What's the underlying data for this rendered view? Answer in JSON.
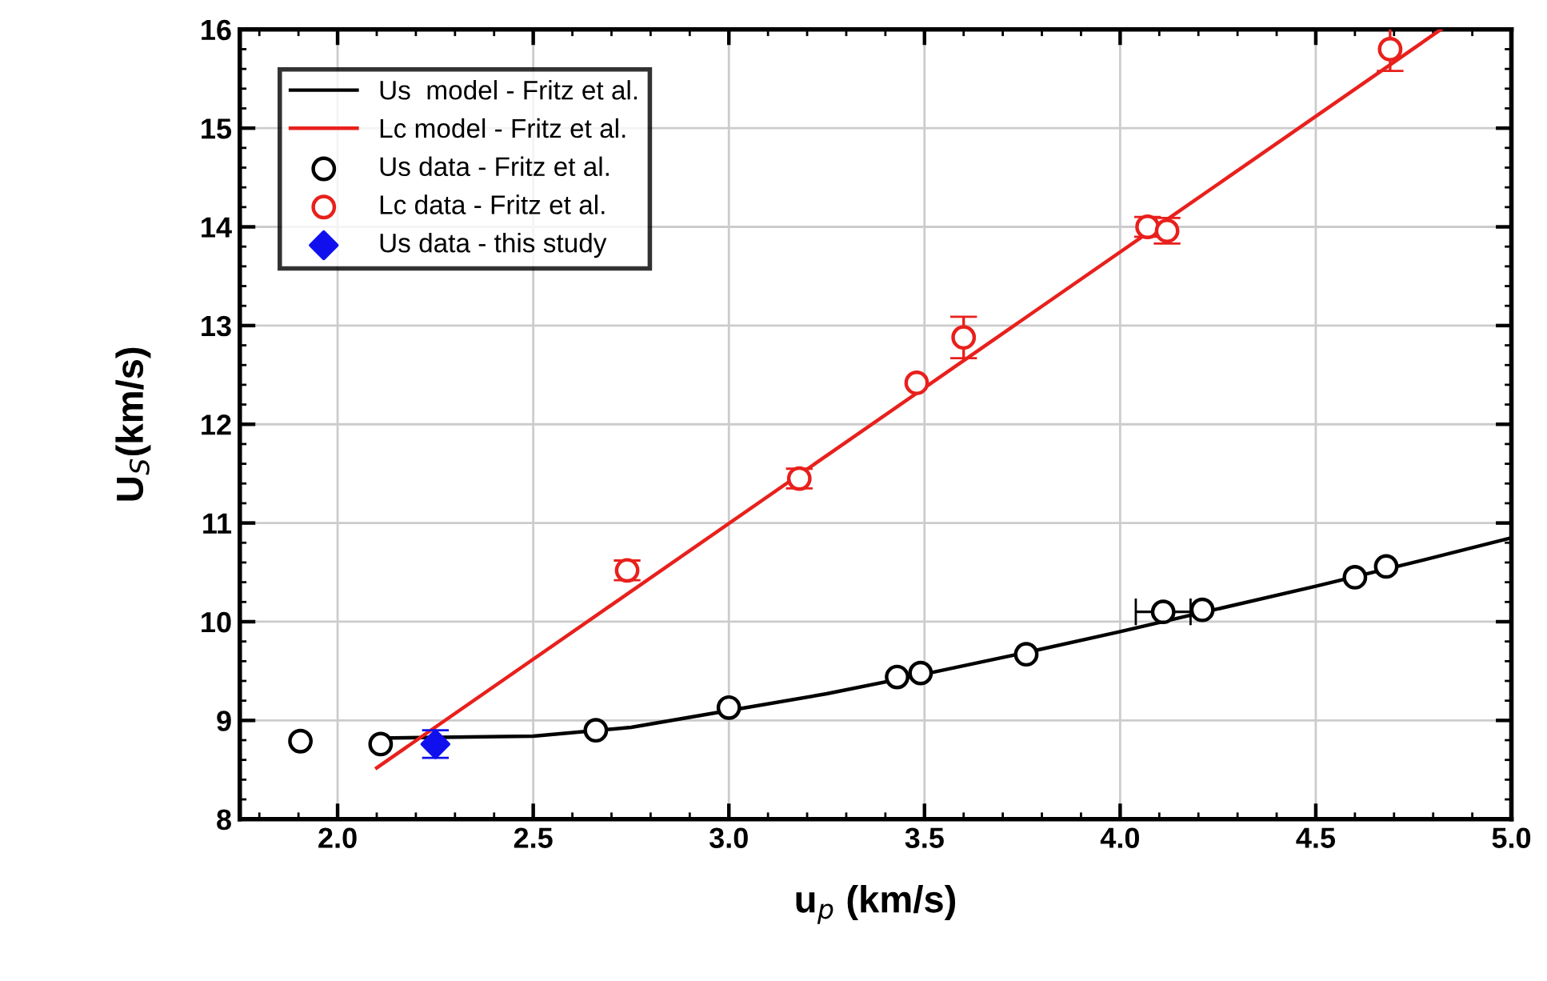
{
  "chart_data": {
    "type": "scatter",
    "xlabel": "u$_{p}$ (km/s)",
    "ylabel": "U$_{S}$(km/s)",
    "xlim": [
      1.75,
      5.0
    ],
    "ylim": [
      8,
      16
    ],
    "xticks": [
      {
        "value": 2.0,
        "label": "2.0"
      },
      {
        "value": 2.5,
        "label": "2.5"
      },
      {
        "value": 3.0,
        "label": "3.0"
      },
      {
        "value": 3.5,
        "label": "3.5"
      },
      {
        "value": 4.0,
        "label": "4.0"
      },
      {
        "value": 4.5,
        "label": "4.5"
      },
      {
        "value": 5.0,
        "label": "5.0"
      }
    ],
    "yticks": [
      8,
      9,
      10,
      11,
      12,
      13,
      14,
      15,
      16
    ],
    "grid": true,
    "legend": "top left",
    "series": [
      {
        "name": "Us  model - Fritz et al.",
        "type": "line",
        "color": "#000000",
        "marker": "none",
        "x": [
          2.1,
          2.5,
          2.75,
          3.0,
          3.25,
          3.5,
          3.75,
          4.0,
          4.25,
          4.5,
          4.75,
          5.0
        ],
        "values": [
          8.82,
          8.84,
          8.93,
          9.1,
          9.27,
          9.47,
          9.68,
          9.9,
          10.13,
          10.36,
          10.6,
          10.85
        ]
      },
      {
        "name": "Lc model - Fritz et al.",
        "type": "line",
        "color": "#e8201c",
        "marker": "none",
        "x": [
          2.1,
          4.82
        ],
        "values": [
          8.52,
          16.0
        ]
      },
      {
        "name": "Us data - Fritz et al.",
        "color": "#000000",
        "marker": "circle",
        "x": [
          1.905,
          2.11,
          2.66,
          3.0,
          3.43,
          3.49,
          3.76,
          4.11,
          4.21,
          4.6,
          4.68
        ],
        "values": [
          8.79,
          8.76,
          8.9,
          9.13,
          9.44,
          9.48,
          9.67,
          10.1,
          10.12,
          10.45,
          10.56
        ],
        "xerrors": [
          null,
          null,
          null,
          null,
          null,
          null,
          null,
          0.07,
          null,
          null,
          null
        ]
      },
      {
        "name": "Lc data - Fritz et al.",
        "color": "#e8201c",
        "marker": "circle",
        "x": [
          2.74,
          3.18,
          3.48,
          3.6,
          4.07,
          4.12,
          4.69
        ],
        "values": [
          10.52,
          11.45,
          12.42,
          12.88,
          14.0,
          13.96,
          15.8
        ],
        "errors": [
          0.1,
          0.1,
          null,
          0.21,
          0.1,
          0.13,
          0.22
        ]
      },
      {
        "name": "Us data - this study",
        "color": "#1010ee",
        "marker": "diamond",
        "x": [
          2.25
        ],
        "values": [
          8.76
        ],
        "errors": [
          0.14
        ]
      }
    ]
  }
}
